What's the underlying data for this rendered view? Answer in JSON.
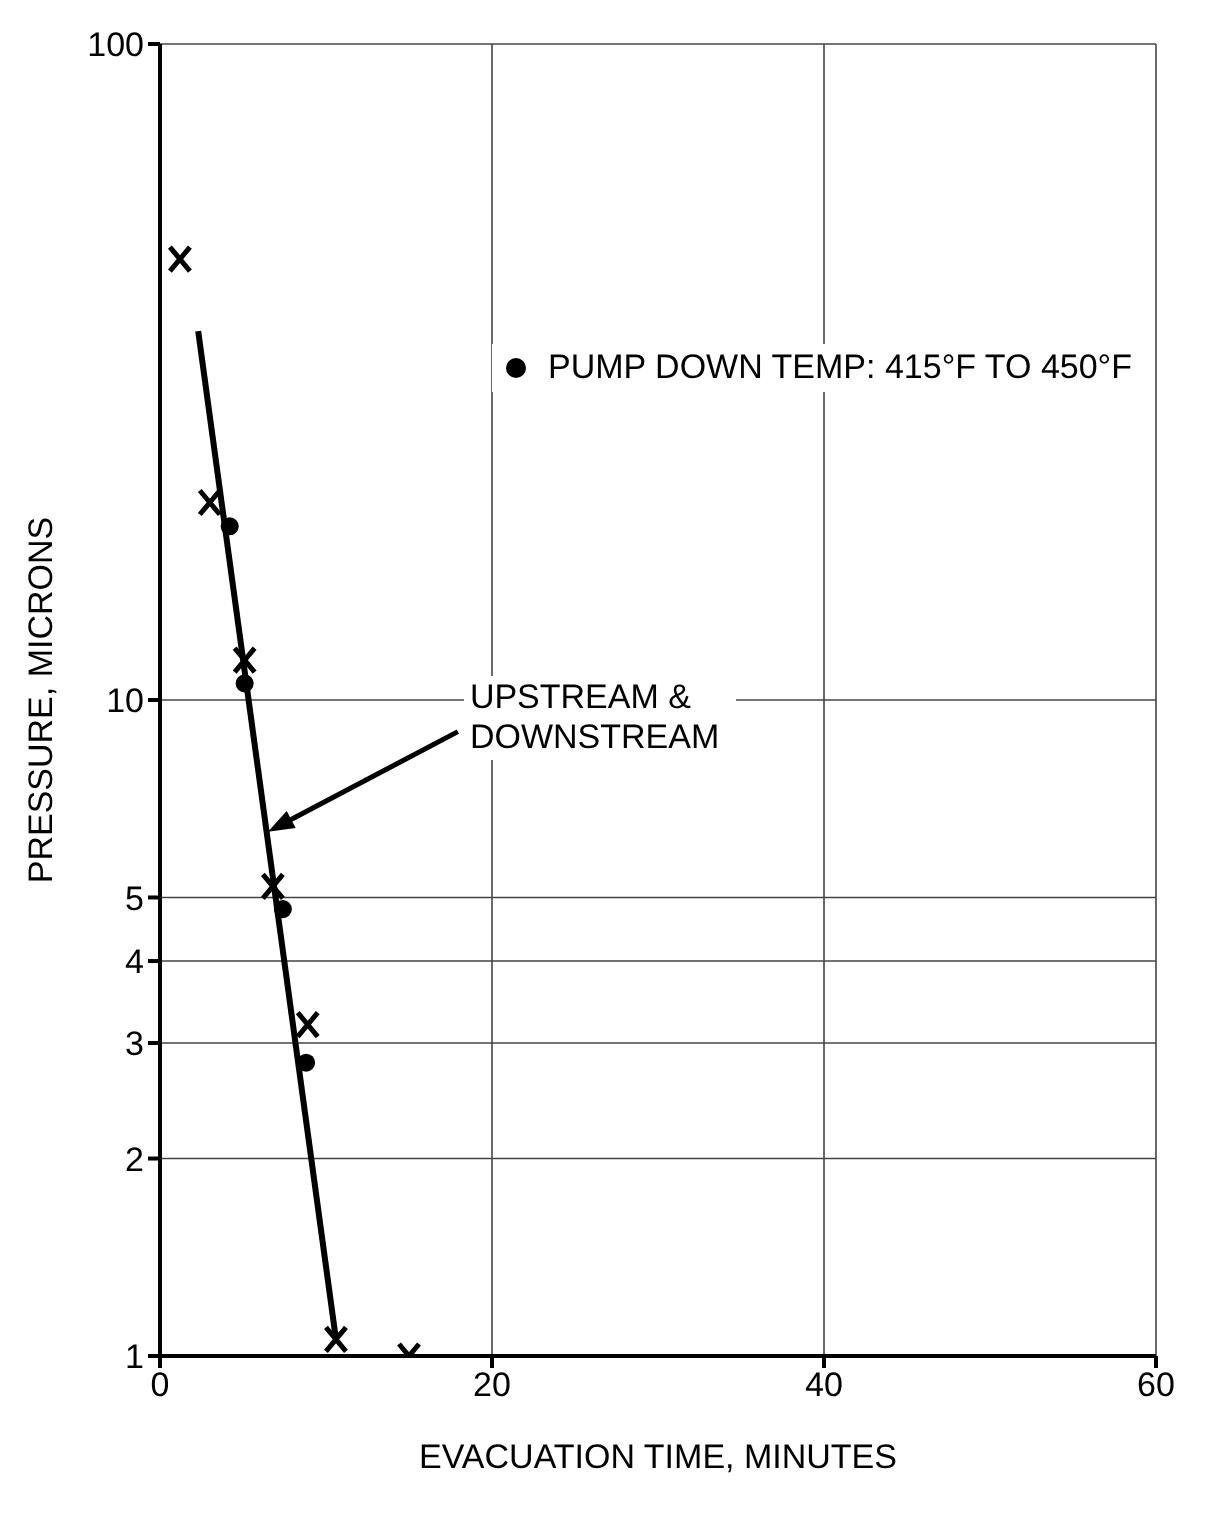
{
  "chart_data": {
    "type": "scatter",
    "xlabel": "EVACUATION TIME, MINUTES",
    "ylabel": "PRESSURE, MICRONS",
    "xlim": [
      0,
      60
    ],
    "xticks": [
      0,
      20,
      40,
      60
    ],
    "ylim": [
      1,
      100
    ],
    "yticks": [
      1,
      2,
      3,
      4,
      5,
      10,
      100
    ],
    "log": "y",
    "grid": true,
    "legend": "top right",
    "series": [
      {
        "marker": "cross",
        "color": "#000000",
        "x": [
          1.2,
          3.0,
          5.1,
          6.8,
          8.9,
          10.6,
          15
        ],
        "values": [
          47,
          20,
          11.5,
          5.2,
          3.2,
          1.06,
          1.0
        ]
      },
      {
        "marker": "circle",
        "name": "PUMP DOWN TEMP: 415°F TO 450°F",
        "color": "#000000",
        "x": [
          4.2,
          5.1,
          7.4,
          8.8
        ],
        "values": [
          18.4,
          10.6,
          4.8,
          2.8
        ]
      },
      {
        "type": "line",
        "marker": "none",
        "line_style": "solid",
        "color": "#000000",
        "x": [
          2.3,
          10.6
        ],
        "values": [
          36.5,
          1.06
        ]
      }
    ],
    "annotations": [
      {
        "text": "UPSTREAM & DOWNSTREAM",
        "x": 6.5,
        "y": 6.3
      }
    ]
  }
}
